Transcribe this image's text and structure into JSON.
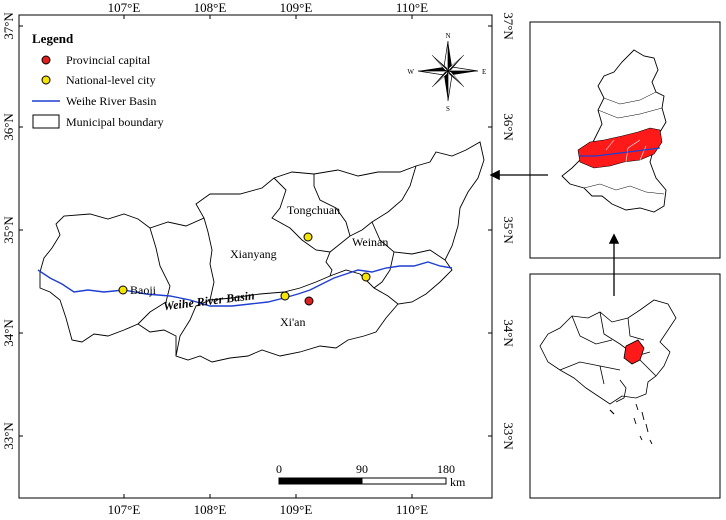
{
  "top_lon_labels": [
    "107°E",
    "108°E",
    "109°E",
    "110°E"
  ],
  "bottom_lon_labels": [
    "107°E",
    "108°E",
    "109°E",
    "110°E"
  ],
  "left_lat_labels": [
    "37°N",
    "36°N",
    "35°N",
    "34°N",
    "33°N"
  ],
  "right_lat_labels": [
    "37°N",
    "36°N",
    "35°N",
    "34°N",
    "33°N"
  ],
  "legend": {
    "title": "Legend",
    "items": [
      {
        "label": "Provincial capital",
        "color": "#e02020"
      },
      {
        "label": "National-level city",
        "color": "#f5e400"
      },
      {
        "label": "Weihe River Basin",
        "color": "#1f3fd0"
      },
      {
        "label": "Municipal boundary",
        "color": "#000000"
      }
    ]
  },
  "compass": {
    "n": "N",
    "s": "S",
    "e": "E",
    "w": "W"
  },
  "cities": {
    "tongchuan": "Tongchuan",
    "xianyang": "Xianyang",
    "weinan": "Weinan",
    "baoji": "Baoji",
    "xian": "Xi'an"
  },
  "river_label": "Weihe River Basin",
  "scalebar": {
    "labels": [
      "0",
      "90",
      "180"
    ],
    "unit": "km"
  },
  "colors": {
    "basin_fill": "#ff1a1a",
    "river": "#1f3fd0"
  }
}
